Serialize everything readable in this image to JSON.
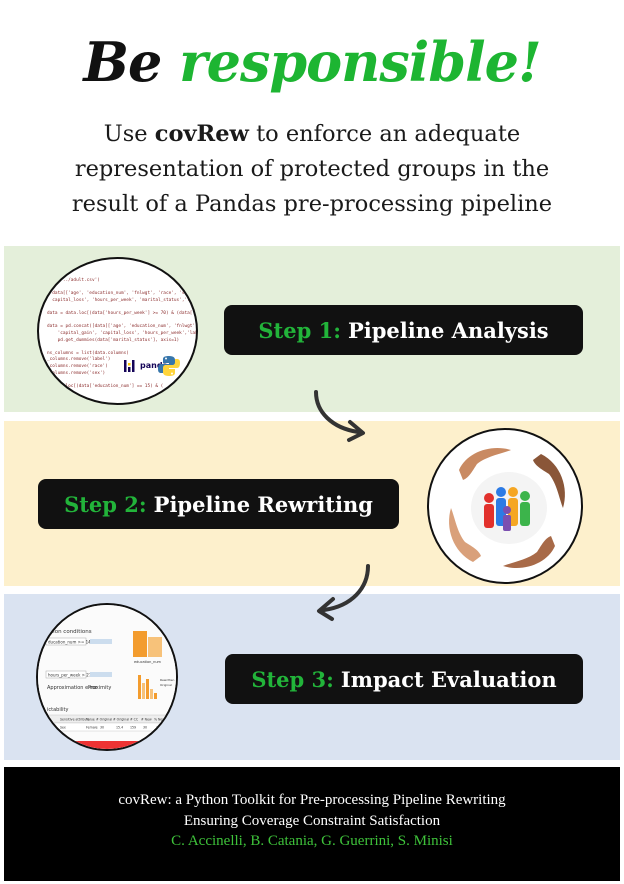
{
  "title": {
    "prefix": "Be",
    "accent": "responsible!"
  },
  "subtitle": {
    "before": "Use",
    "brand": "covRew",
    "line1_rest": "to enforce an adequate",
    "line2": "representation of protected groups in the",
    "line3": "result of a Pandas pre-processing pipeline"
  },
  "steps": [
    {
      "number": "Step 1:",
      "label": "Pipeline Analysis"
    },
    {
      "number": "Step 2:",
      "label": "Pipeline Rewriting"
    },
    {
      "number": "Step 3:",
      "label": "Impact Evaluation"
    }
  ],
  "illustrations": {
    "code_lines": [
      "import SQL",
      "",
      "_csv('../adult.csv')",
      "",
      "= data[['age', 'education_num', 'fnlwgt', 'race', 'sex',",
      "  capital_loss', 'hours_per_week', 'marital_status','label']",
      "",
      "data = data.loc[(data['hours_per_week'] >= 70) & (data['capital_",
      "",
      "data = pd.concat([data[['age', 'education_num', 'fnlwgt', 'race',",
      "    'capital_gain', 'capital_loss', 'hours_per_week','label']],",
      "    pd.get_dummies(data['marital_status'], axis=1)",
      "",
      "ns_columns = list(data.columns)",
      "_columns.remove('label')",
      "_columns.remove('race')",
      "_columns.remove('sex')",
      "",
      "= data.loc[(data['education_num'] == 15) & (",
      ""
    ],
    "pandas_logo": "pandas",
    "eval_panel": {
      "section": "ction conditions",
      "field1": "ducation_num >= 14.0",
      "field2": "hours_per_week > 27.4",
      "approx": "Approximation error",
      "proximity": "Proximity",
      "table_title": "ictability",
      "col1": "Sensitive attribute",
      "col2": "Value",
      "col3": "# Original",
      "col4": "# Original",
      "col5": "# CC",
      "col6": "# New",
      "col7": "% New",
      "row_attr": "Sex",
      "row_val": "Female",
      "row_n1": "30",
      "row_n2": "15.4",
      "row_n3": "159",
      "row_n4": "30",
      "row_n5": "12",
      "legend_a": "Rewritten",
      "legend_b": "Original",
      "xlabel": "education_num"
    }
  },
  "footer": {
    "line1": "covRew: a Python Toolkit for Pre-processing Pipeline Rewriting",
    "line2": "Ensuring Coverage Constraint Satisfaction",
    "authors": "C. Accinelli, B. Catania, G. Guerrini, S. Minisi"
  },
  "colors": {
    "accent_green": "#1db532",
    "band_green": "#e4efda",
    "band_yellow": "#fdf0cc",
    "band_blue": "#dae3f1",
    "pill_bg": "#111111",
    "footer_bg": "#000000"
  },
  "icons": [
    "pandas-logo-icon",
    "python-logo-icon",
    "curved-arrow-icon",
    "hands-around-people-icon"
  ]
}
